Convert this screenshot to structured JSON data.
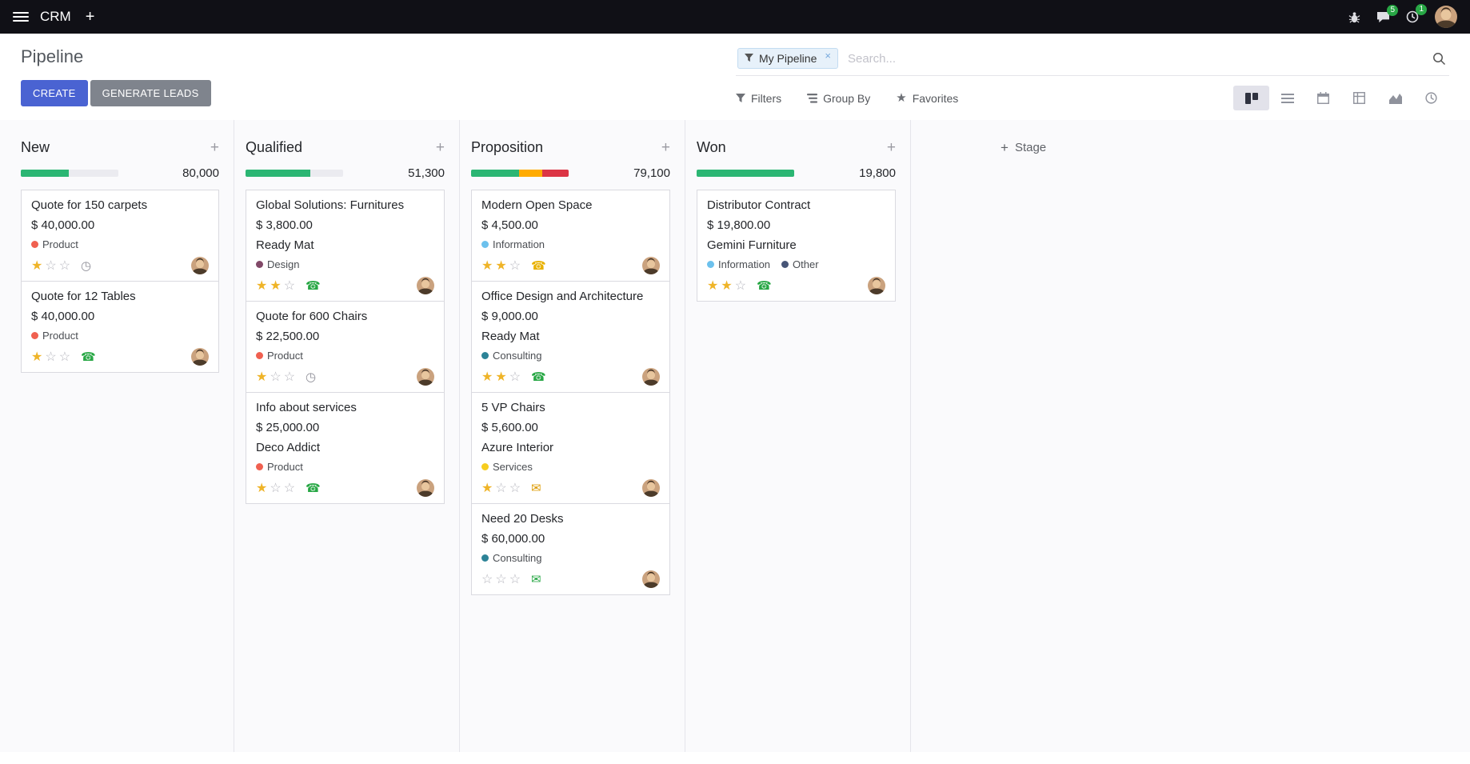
{
  "navbar": {
    "app_name": "CRM",
    "messages_badge": "5",
    "activities_badge": "1",
    "icons": [
      "menu-icon",
      "plus-icon",
      "bug-icon",
      "messages-icon",
      "activities-icon",
      "user-avatar"
    ]
  },
  "control_panel": {
    "title": "Pipeline",
    "create_label": "CREATE",
    "generate_leads_label": "GENERATE LEADS",
    "search": {
      "facet_label": "My Pipeline",
      "remove_facet_label": "×",
      "placeholder": "Search..."
    },
    "filters_label": "Filters",
    "group_by_label": "Group By",
    "favorites_label": "Favorites",
    "favorites_star": "★",
    "view_switcher": [
      "kanban-view-icon",
      "list-view-icon",
      "calendar-view-icon",
      "pivot-view-icon",
      "graph-view-icon",
      "activity-view-icon"
    ],
    "active_view": "kanban"
  },
  "kanban": {
    "add_stage_label": "Stage",
    "add_stage_plus": "+",
    "quick_add_label": "+",
    "colors": {
      "progress_green": "#2bb673",
      "progress_yellow": "#ffab00",
      "progress_red": "#dc3545",
      "star_filled": "#efb428",
      "badge_green": "#28a745"
    },
    "columns": [
      {
        "title": "New",
        "total": "80,000",
        "progress": [
          {
            "color": "#2bb673",
            "width": "49%"
          }
        ],
        "cards": [
          {
            "title": "Quote for 150 carpets",
            "amount": "$ 40,000.00",
            "tags": [
              {
                "label": "Product",
                "color": "#f06050"
              }
            ],
            "stars": 1,
            "activity": {
              "icon": "clock-icon",
              "glyph": "◷",
              "color": "#8f8f98"
            }
          },
          {
            "title": "Quote for 12 Tables",
            "amount": "$ 40,000.00",
            "tags": [
              {
                "label": "Product",
                "color": "#f06050"
              }
            ],
            "stars": 1,
            "activity": {
              "icon": "phone-icon",
              "glyph": "☎",
              "color": "#28a745"
            }
          }
        ]
      },
      {
        "title": "Qualified",
        "total": "51,300",
        "progress": [
          {
            "color": "#2bb673",
            "width": "66%"
          }
        ],
        "cards": [
          {
            "title": "Global Solutions: Furnitures",
            "amount": "$ 3,800.00",
            "partner": "Ready Mat",
            "tags": [
              {
                "label": "Design",
                "color": "#814968"
              }
            ],
            "stars": 2,
            "activity": {
              "icon": "phone-icon",
              "glyph": "☎",
              "color": "#28a745"
            }
          },
          {
            "title": "Quote for 600 Chairs",
            "amount": "$ 22,500.00",
            "tags": [
              {
                "label": "Product",
                "color": "#f06050"
              }
            ],
            "stars": 1,
            "activity": {
              "icon": "clock-icon",
              "glyph": "◷",
              "color": "#8f8f98"
            }
          },
          {
            "title": "Info about services",
            "amount": "$ 25,000.00",
            "partner": "Deco Addict",
            "tags": [
              {
                "label": "Product",
                "color": "#f06050"
              }
            ],
            "stars": 1,
            "activity": {
              "icon": "phone-icon",
              "glyph": "☎",
              "color": "#28a745"
            }
          }
        ]
      },
      {
        "title": "Proposition",
        "total": "79,100",
        "progress": [
          {
            "color": "#2bb673",
            "width": "49%"
          },
          {
            "color": "#ffab00",
            "width": "24%"
          },
          {
            "color": "#dc3545",
            "width": "27%"
          }
        ],
        "cards": [
          {
            "title": "Modern Open Space",
            "amount": "$ 4,500.00",
            "tags": [
              {
                "label": "Information",
                "color": "#6cc1ed"
              }
            ],
            "stars": 2,
            "activity": {
              "icon": "phone-icon",
              "glyph": "☎",
              "color": "#e8b100"
            }
          },
          {
            "title": "Office Design and Architecture",
            "amount": "$ 9,000.00",
            "partner": "Ready Mat",
            "tags": [
              {
                "label": "Consulting",
                "color": "#2c8397"
              }
            ],
            "stars": 2,
            "activity": {
              "icon": "phone-icon",
              "glyph": "☎",
              "color": "#28a745"
            }
          },
          {
            "title": "5 VP Chairs",
            "amount": "$ 5,600.00",
            "partner": "Azure Interior",
            "tags": [
              {
                "label": "Services",
                "color": "#f7cd1f"
              }
            ],
            "stars": 1,
            "activity": {
              "icon": "envelope-icon",
              "glyph": "✉",
              "color": "#dd9a00"
            }
          },
          {
            "title": "Need 20 Desks",
            "amount": "$ 60,000.00",
            "tags": [
              {
                "label": "Consulting",
                "color": "#2c8397"
              }
            ],
            "stars": 0,
            "activity": {
              "icon": "envelope-icon",
              "glyph": "✉",
              "color": "#28a745"
            }
          }
        ]
      },
      {
        "title": "Won",
        "total": "19,800",
        "progress": [
          {
            "color": "#2bb673",
            "width": "100%"
          }
        ],
        "cards": [
          {
            "title": "Distributor Contract",
            "amount": "$ 19,800.00",
            "partner": "Gemini Furniture",
            "tags": [
              {
                "label": "Information",
                "color": "#6cc1ed"
              },
              {
                "label": "Other",
                "color": "#475577"
              }
            ],
            "stars": 2,
            "activity": {
              "icon": "phone-icon",
              "glyph": "☎",
              "color": "#28a745"
            }
          }
        ]
      }
    ]
  }
}
